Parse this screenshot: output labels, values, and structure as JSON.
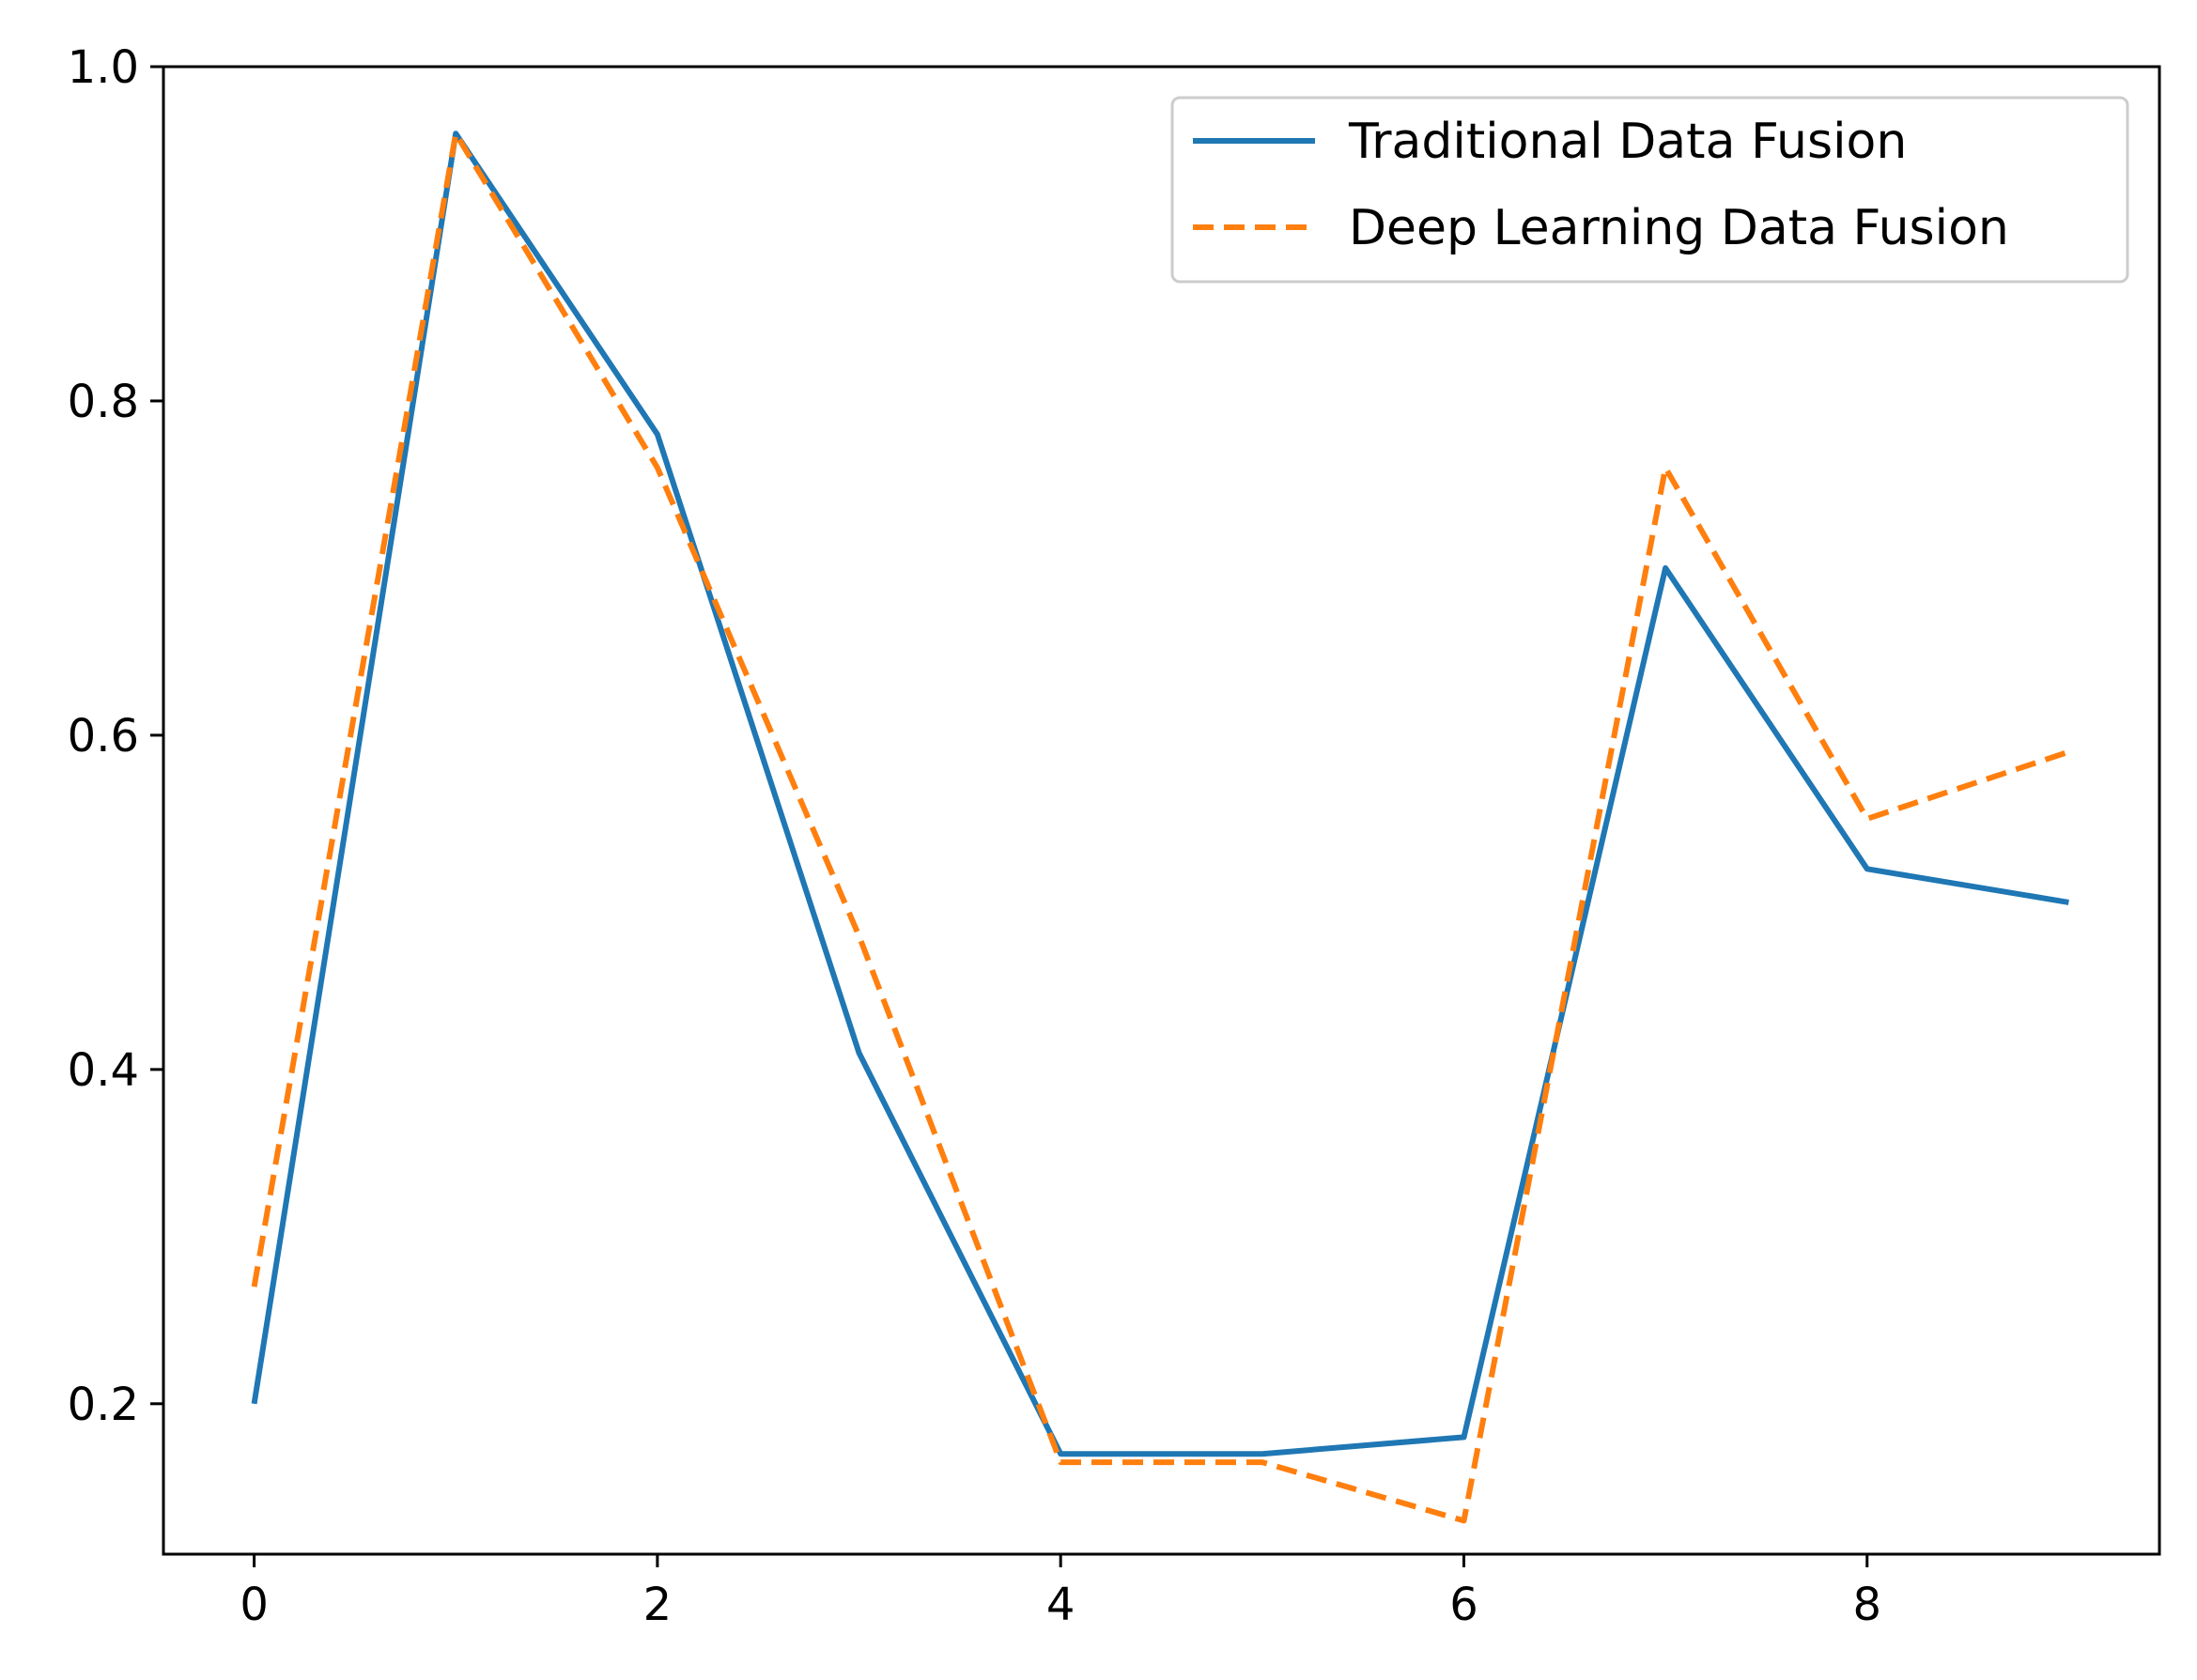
{
  "chart_data": {
    "type": "line",
    "title": "",
    "xlabel": "",
    "ylabel": "",
    "xlim": [
      -0.45,
      9.45
    ],
    "ylim": [
      0.11,
      1.0
    ],
    "xticks": [
      0,
      2,
      4,
      6,
      8
    ],
    "xtick_labels": [
      "0",
      "2",
      "4",
      "6",
      "8"
    ],
    "yticks": [
      0.2,
      0.4,
      0.6,
      0.8,
      1.0
    ],
    "ytick_labels": [
      "0.2",
      "0.4",
      "0.6",
      "0.8",
      "1.0"
    ],
    "grid": false,
    "legend_position": "top-right",
    "x": [
      0,
      1,
      2,
      3,
      4,
      5,
      6,
      7,
      8,
      9
    ],
    "series": [
      {
        "name": "Traditional Data Fusion",
        "color": "#1f77b4",
        "style": "solid",
        "values": [
          0.2,
          0.96,
          0.78,
          0.41,
          0.17,
          0.17,
          0.18,
          0.7,
          0.52,
          0.5
        ]
      },
      {
        "name": "Deep Learning Data Fusion",
        "color": "#ff7f0e",
        "style": "dashed",
        "values": [
          0.27,
          0.96,
          0.76,
          0.48,
          0.165,
          0.165,
          0.13,
          0.76,
          0.55,
          0.59
        ]
      }
    ]
  }
}
